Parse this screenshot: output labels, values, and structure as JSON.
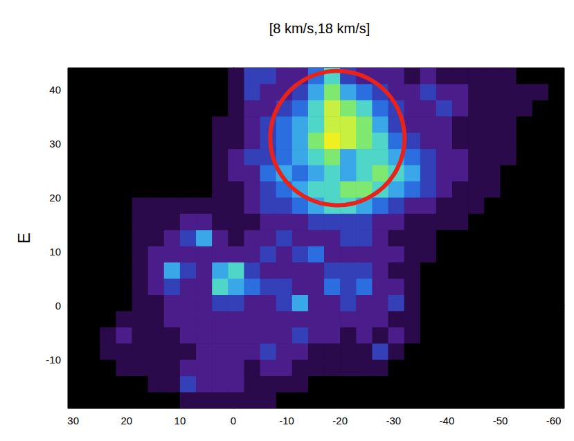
{
  "chart_data": {
    "type": "heatmap",
    "title": "[8 km/s,18 km/s]",
    "y_label": "E",
    "xlim": [
      31,
      -62
    ],
    "xticks": [
      30,
      20,
      10,
      0,
      -10,
      -20,
      -30,
      -40,
      -50,
      -60
    ],
    "ylim": [
      -19,
      44
    ],
    "yticks": [
      -10,
      0,
      10,
      20,
      30,
      40
    ],
    "grid": false,
    "zlim": [
      0,
      9
    ],
    "x_bins": [
      31,
      28,
      25,
      22,
      19,
      16,
      13,
      10,
      7,
      4,
      1,
      -2,
      -5,
      -8,
      -11,
      -14,
      -17,
      -20,
      -23,
      -26,
      -29,
      -32,
      -35,
      -38,
      -41,
      -44,
      -47,
      -50,
      -53,
      -56,
      -59,
      -62
    ],
    "y_bins": [
      44,
      41,
      38,
      35,
      32,
      29,
      26,
      23,
      20,
      17,
      14,
      11,
      8,
      5,
      2,
      -1,
      -4,
      -7,
      -10,
      -13,
      -16,
      -19
    ],
    "z": [
      [
        0,
        0,
        0,
        0,
        0,
        0,
        0,
        0,
        0,
        0,
        1,
        3,
        3,
        2,
        2,
        4,
        6,
        3,
        2,
        2,
        2,
        1,
        2,
        1,
        1,
        1,
        1,
        1,
        0,
        0,
        0
      ],
      [
        0,
        0,
        0,
        0,
        0,
        0,
        0,
        0,
        0,
        0,
        1,
        3,
        2,
        2,
        3,
        5,
        7,
        5,
        4,
        3,
        2,
        2,
        3,
        2,
        2,
        1,
        1,
        1,
        1,
        1,
        0
      ],
      [
        0,
        0,
        0,
        0,
        0,
        0,
        0,
        0,
        0,
        0,
        1,
        2,
        2,
        3,
        4,
        6,
        8,
        7,
        6,
        4,
        3,
        2,
        2,
        3,
        2,
        1,
        1,
        1,
        1,
        0,
        0
      ],
      [
        0,
        0,
        0,
        0,
        0,
        0,
        0,
        0,
        0,
        1,
        1,
        2,
        3,
        4,
        5,
        6,
        8,
        8,
        7,
        5,
        3,
        2,
        2,
        2,
        1,
        1,
        1,
        1,
        0,
        0,
        0
      ],
      [
        0,
        0,
        0,
        0,
        0,
        0,
        0,
        0,
        0,
        1,
        1,
        2,
        3,
        4,
        5,
        7,
        9,
        8,
        7,
        6,
        4,
        3,
        2,
        2,
        1,
        1,
        1,
        1,
        0,
        0,
        0
      ],
      [
        0,
        0,
        0,
        0,
        0,
        0,
        0,
        0,
        0,
        1,
        2,
        3,
        3,
        4,
        5,
        6,
        7,
        5,
        6,
        6,
        5,
        4,
        3,
        2,
        2,
        1,
        1,
        1,
        0,
        0,
        0
      ],
      [
        0,
        0,
        0,
        0,
        0,
        0,
        0,
        0,
        0,
        1,
        2,
        2,
        4,
        5,
        4,
        5,
        6,
        5,
        6,
        7,
        6,
        5,
        3,
        2,
        2,
        1,
        1,
        0,
        0,
        0,
        0
      ],
      [
        0,
        0,
        0,
        0,
        0,
        0,
        0,
        0,
        0,
        1,
        1,
        2,
        3,
        4,
        5,
        6,
        6,
        7,
        7,
        6,
        5,
        4,
        3,
        2,
        1,
        1,
        1,
        0,
        0,
        0,
        0
      ],
      [
        0,
        0,
        0,
        0,
        1,
        1,
        1,
        1,
        1,
        1,
        1,
        2,
        3,
        3,
        4,
        5,
        6,
        6,
        5,
        4,
        3,
        2,
        2,
        1,
        1,
        1,
        0,
        0,
        0,
        0,
        0
      ],
      [
        0,
        0,
        0,
        0,
        1,
        1,
        1,
        2,
        2,
        1,
        1,
        1,
        2,
        2,
        2,
        3,
        3,
        3,
        3,
        2,
        2,
        1,
        1,
        1,
        1,
        0,
        0,
        0,
        0,
        0,
        0
      ],
      [
        0,
        0,
        0,
        0,
        1,
        1,
        2,
        3,
        5,
        2,
        1,
        2,
        2,
        3,
        2,
        2,
        2,
        3,
        3,
        2,
        1,
        1,
        1,
        0,
        0,
        0,
        0,
        0,
        0,
        0,
        0
      ],
      [
        0,
        0,
        0,
        0,
        1,
        2,
        2,
        2,
        2,
        2,
        2,
        2,
        3,
        2,
        3,
        4,
        2,
        2,
        2,
        2,
        2,
        1,
        1,
        0,
        0,
        0,
        0,
        0,
        0,
        0,
        0
      ],
      [
        0,
        0,
        0,
        0,
        1,
        2,
        5,
        3,
        2,
        5,
        6,
        3,
        2,
        2,
        2,
        2,
        3,
        3,
        3,
        2,
        1,
        1,
        0,
        0,
        0,
        0,
        0,
        0,
        0,
        0,
        0
      ],
      [
        0,
        0,
        0,
        0,
        1,
        2,
        3,
        2,
        2,
        6,
        5,
        4,
        3,
        3,
        2,
        2,
        4,
        3,
        4,
        2,
        2,
        1,
        0,
        0,
        0,
        0,
        0,
        0,
        0,
        0,
        0
      ],
      [
        0,
        0,
        0,
        0,
        1,
        1,
        2,
        2,
        2,
        3,
        3,
        2,
        2,
        3,
        5,
        2,
        2,
        3,
        2,
        2,
        3,
        1,
        0,
        0,
        0,
        0,
        0,
        0,
        0,
        0,
        0
      ],
      [
        0,
        0,
        0,
        1,
        1,
        1,
        2,
        2,
        2,
        2,
        2,
        2,
        2,
        2,
        2,
        2,
        2,
        2,
        2,
        2,
        1,
        1,
        0,
        0,
        0,
        0,
        0,
        0,
        0,
        0,
        0
      ],
      [
        0,
        0,
        1,
        2,
        1,
        1,
        1,
        2,
        2,
        2,
        2,
        2,
        2,
        2,
        3,
        2,
        2,
        1,
        2,
        1,
        2,
        1,
        0,
        0,
        0,
        0,
        0,
        0,
        0,
        0,
        0
      ],
      [
        0,
        0,
        1,
        1,
        1,
        1,
        1,
        1,
        2,
        2,
        2,
        2,
        3,
        2,
        2,
        1,
        1,
        1,
        1,
        3,
        1,
        0,
        0,
        0,
        0,
        0,
        0,
        0,
        0,
        0,
        0
      ],
      [
        0,
        0,
        0,
        1,
        1,
        1,
        1,
        2,
        2,
        2,
        2,
        1,
        2,
        2,
        1,
        1,
        1,
        1,
        1,
        1,
        0,
        0,
        0,
        0,
        0,
        0,
        0,
        0,
        0,
        0,
        0
      ],
      [
        0,
        0,
        0,
        0,
        0,
        1,
        1,
        3,
        2,
        2,
        2,
        1,
        1,
        1,
        1,
        0,
        0,
        0,
        0,
        0,
        0,
        0,
        0,
        0,
        0,
        0,
        0,
        0,
        0,
        0,
        0
      ],
      [
        0,
        0,
        0,
        0,
        0,
        0,
        0,
        1,
        1,
        1,
        1,
        1,
        1,
        0,
        0,
        0,
        0,
        0,
        0,
        0,
        0,
        0,
        0,
        0,
        0,
        0,
        0,
        0,
        0,
        0,
        0
      ]
    ],
    "circle": {
      "x": -19.5,
      "y": 31,
      "r": 12.5,
      "color": "#e8231c"
    }
  }
}
